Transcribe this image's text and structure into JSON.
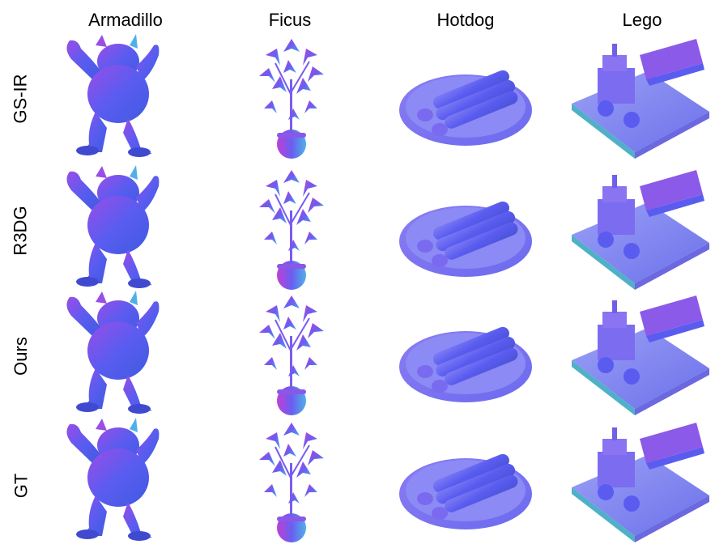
{
  "columns": [
    "Armadillo",
    "Ficus",
    "Hotdog",
    "Lego"
  ],
  "rows": [
    "GS-IR",
    "R3DG",
    "Ours",
    "GT"
  ],
  "palette": {
    "normal_blue": "#5a5cf0",
    "normal_purple": "#9a4de8",
    "normal_magenta": "#c03fd6",
    "normal_cyan": "#56c8e8",
    "normal_green": "#5fd6a6",
    "normal_pink": "#e06ad6"
  }
}
